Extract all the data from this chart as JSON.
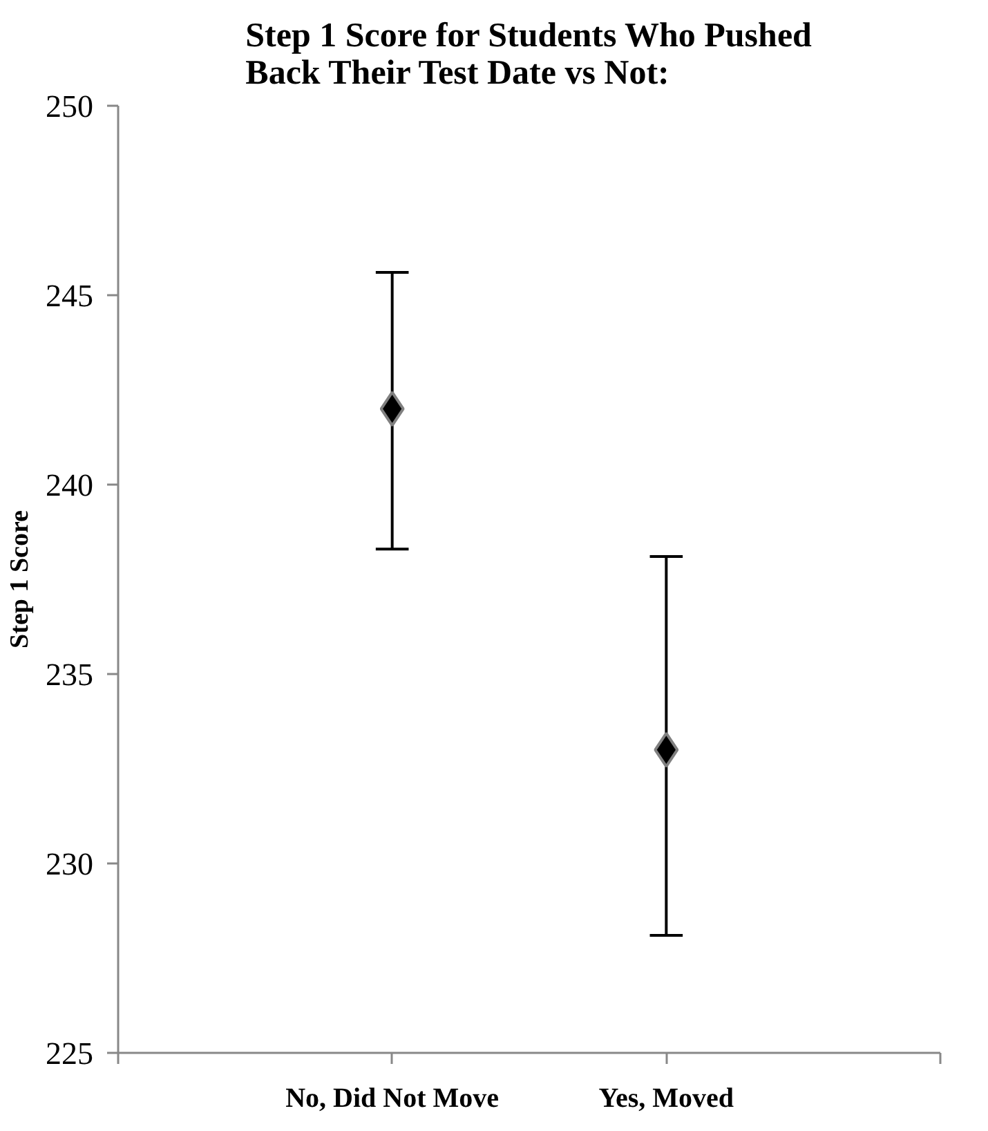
{
  "chart_data": {
    "type": "scatter",
    "title": "Step 1 Score for Students Who Pushed\nBack Their Test Date vs Not:",
    "ylabel": "Step 1 Score",
    "categories": [
      "No, Did Not Move",
      "Yes, Moved"
    ],
    "series": [
      {
        "color": "#000000",
        "values": [
          242,
          233
        ],
        "errors": [
          [
            238.3,
            245.6
          ],
          [
            228.1,
            238.1
          ]
        ]
      }
    ],
    "ylim": [
      225,
      250
    ],
    "yticks": [
      225,
      230,
      235,
      240,
      245,
      250
    ],
    "grid": false,
    "marker": "diamond"
  }
}
